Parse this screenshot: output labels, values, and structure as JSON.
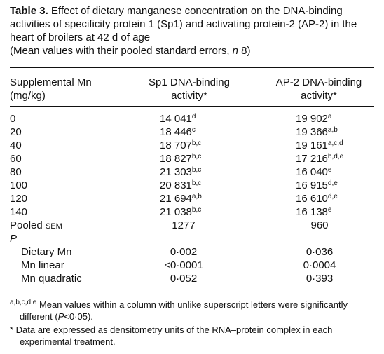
{
  "title": {
    "label": "Table 3.",
    "text": "Effect of dietary manganese concentration on the DNA-binding activities of specificity protein 1 (Sp1) and activating protein-2 (AP-2) in the heart of broilers at 42 d of age"
  },
  "subtitle": {
    "before": "(Mean values with their pooled standard errors, ",
    "italic": "n",
    "after": " 8)"
  },
  "table": {
    "headers": [
      [
        "Supplemental Mn",
        "(mg/kg)"
      ],
      [
        "Sp1 DNA-binding",
        "activity*"
      ],
      [
        "AP-2 DNA-binding",
        "activity*"
      ]
    ],
    "rows": [
      {
        "label": "0",
        "sp1": "14 041",
        "sp1_sup": "d",
        "ap2": "19 902",
        "ap2_sup": "a"
      },
      {
        "label": "20",
        "sp1": "18 446",
        "sp1_sup": "c",
        "ap2": "19 366",
        "ap2_sup": "a,b"
      },
      {
        "label": "40",
        "sp1": "18 707",
        "sp1_sup": "b,c",
        "ap2": "19 161",
        "ap2_sup": "a,c,d"
      },
      {
        "label": "60",
        "sp1": "18 827",
        "sp1_sup": "b,c",
        "ap2": "17 216",
        "ap2_sup": "b,d,e"
      },
      {
        "label": "80",
        "sp1": "21 303",
        "sp1_sup": "b,c",
        "ap2": "16 040",
        "ap2_sup": "e"
      },
      {
        "label": "100",
        "sp1": "20 831",
        "sp1_sup": "b,c",
        "ap2": "16 915",
        "ap2_sup": "d,e"
      },
      {
        "label": "120",
        "sp1": "21 694",
        "sp1_sup": "a,b",
        "ap2": "16 610",
        "ap2_sup": "d,e"
      },
      {
        "label": "140",
        "sp1": "21 038",
        "sp1_sup": "b,c",
        "ap2": "16 138",
        "ap2_sup": "e"
      }
    ],
    "pooled": {
      "label": "Pooled",
      "label_small": "SEM",
      "sp1": "1277",
      "ap2": "960"
    },
    "p_label": "P",
    "p_rows": [
      {
        "label": "Dietary Mn",
        "sp1": "0·002",
        "ap2": "0·036"
      },
      {
        "label": "Mn linear",
        "sp1": "<0·0001",
        "ap2": "0·0004"
      },
      {
        "label": "Mn quadratic",
        "sp1": "0·052",
        "ap2": "0·393"
      }
    ]
  },
  "footnotes": [
    {
      "sup": "a,b,c,d,e",
      "before": " Mean values within a column with unlike superscript letters were significantly different (",
      "italic": "P",
      "after": "<0·05)."
    },
    {
      "text": "* Data are expressed as densitometry units of the RNA–protein complex in each experimental treatment."
    }
  ]
}
